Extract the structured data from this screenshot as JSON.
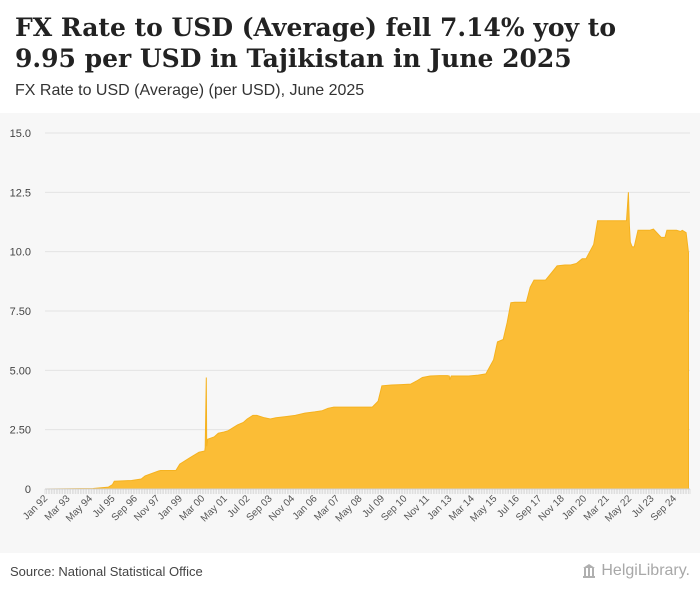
{
  "header": {
    "title": "FX Rate to USD (Average) fell 7.14% yoy to 9.95 per USD in Tajikistan in June 2025",
    "subtitle": "FX Rate to USD (Average) (per USD), June 2025"
  },
  "footer": {
    "source": "Source: National Statistical Office",
    "brand": "HelgiLibrary."
  },
  "colors": {
    "fill": "#fbbd36",
    "stroke": "#f5b21f",
    "grid": "#e3e3e3",
    "plot_bg": "#f7f7f7"
  },
  "chart_data": {
    "type": "area",
    "title": "FX Rate to USD (Average) (per USD), June 2025",
    "xlabel": "",
    "ylabel": "",
    "ylim": [
      0,
      15
    ],
    "yticks": [
      0,
      2.5,
      5,
      7.5,
      10,
      12.5,
      15
    ],
    "ytick_labels": [
      "0",
      "2.50",
      "5.00",
      "7.50",
      "10.0",
      "12.5",
      "15.0"
    ],
    "x_range": [
      1992.0,
      2025.5
    ],
    "xtick_labels": [
      "Jan 92",
      "Mar 93",
      "May 94",
      "Jul 95",
      "Sep 96",
      "Nov 97",
      "Jan 99",
      "Mar 00",
      "May 01",
      "Jul 02",
      "Sep 03",
      "Nov 04",
      "Jan 06",
      "Mar 07",
      "May 08",
      "Jul 09",
      "Sep 10",
      "Nov 11",
      "Jan 13",
      "Mar 14",
      "May 15",
      "Jul 16",
      "Sep 17",
      "Nov 18",
      "Jan 20",
      "Mar 21",
      "May 22",
      "Jul 23",
      "Sep 24"
    ],
    "grid": true,
    "legend": "none",
    "series": [
      {
        "name": "FX Rate to USD (Average)",
        "x": [
          1992.0,
          1994.5,
          1995.3,
          1995.5,
          1995.6,
          1996.5,
          1997.0,
          1997.2,
          1997.9,
          1998.0,
          1998.5,
          1998.8,
          1999.0,
          1999.5,
          2000.0,
          2000.3,
          2000.32,
          2000.38,
          2000.4,
          2000.45,
          2000.8,
          2001.0,
          2001.3,
          2001.5,
          2001.8,
          2002.0,
          2002.3,
          2002.5,
          2002.8,
          2003.0,
          2003.4,
          2003.7,
          2004.0,
          2004.5,
          2005.0,
          2005.5,
          2006.0,
          2006.4,
          2006.7,
          2007.0,
          2007.5,
          2008.0,
          2008.2,
          2008.5,
          2008.7,
          2009.0,
          2009.3,
          2009.5,
          2010.0,
          2010.5,
          2011.0,
          2011.3,
          2011.6,
          2012.0,
          2012.5,
          2012.9,
          2013.0,
          2013.02,
          2013.1,
          2014.0,
          2014.5,
          2014.9,
          2015.0,
          2015.3,
          2015.5,
          2015.8,
          2016.0,
          2016.2,
          2016.4,
          2017.0,
          2017.2,
          2017.4,
          2018.0,
          2018.3,
          2018.6,
          2019.0,
          2019.3,
          2019.6,
          2019.9,
          2020.1,
          2020.5,
          2020.7,
          2021.0,
          2021.2,
          2021.5,
          2021.8,
          2022.0,
          2022.2,
          2022.3,
          2022.35,
          2022.4,
          2022.5,
          2022.6,
          2022.8,
          2023.0,
          2023.2,
          2023.4,
          2023.6,
          2024.0,
          2024.2,
          2024.3,
          2024.6,
          2024.8,
          2025.0,
          2025.1,
          2025.3,
          2025.42
        ],
        "values": [
          0.0,
          0.02,
          0.08,
          0.18,
          0.33,
          0.36,
          0.42,
          0.55,
          0.76,
          0.78,
          0.78,
          0.78,
          1.05,
          1.3,
          1.55,
          1.6,
          1.75,
          4.7,
          1.8,
          2.1,
          2.2,
          2.35,
          2.4,
          2.45,
          2.6,
          2.7,
          2.8,
          2.95,
          3.1,
          3.1,
          3.0,
          2.95,
          3.0,
          3.05,
          3.1,
          3.2,
          3.25,
          3.3,
          3.4,
          3.45,
          3.45,
          3.45,
          3.45,
          3.45,
          3.45,
          3.45,
          3.7,
          4.35,
          4.38,
          4.4,
          4.42,
          4.55,
          4.7,
          4.76,
          4.78,
          4.78,
          4.76,
          4.6,
          4.76,
          4.76,
          4.8,
          4.85,
          5.0,
          5.45,
          6.2,
          6.3,
          7.0,
          7.85,
          7.87,
          7.87,
          8.5,
          8.8,
          8.8,
          9.1,
          9.4,
          9.44,
          9.44,
          9.5,
          9.7,
          9.7,
          10.3,
          11.3,
          11.3,
          11.3,
          11.3,
          11.3,
          11.3,
          11.3,
          12.5,
          11.1,
          10.4,
          10.2,
          10.2,
          10.9,
          10.9,
          10.9,
          10.9,
          10.95,
          10.6,
          10.6,
          10.9,
          10.9,
          10.9,
          10.85,
          10.9,
          10.8,
          9.95
        ]
      }
    ]
  }
}
